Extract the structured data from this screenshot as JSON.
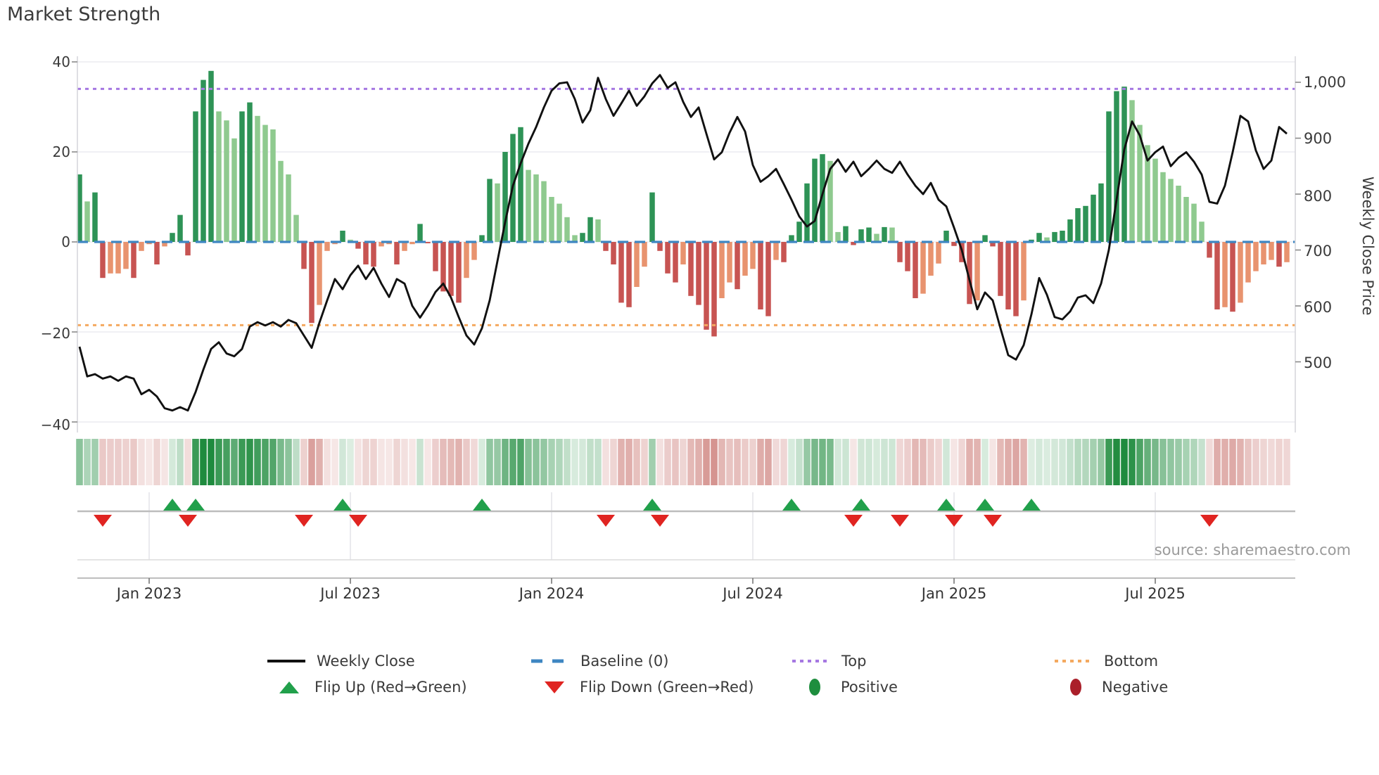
{
  "title": "Market Strength",
  "source_note": "source: sharemaestro.com",
  "colors": {
    "bar_positive_strong": "#2e9356",
    "bar_positive_weak": "#8fca8f",
    "bar_negative_strong": "#c75452",
    "bar_negative_weak": "#e8936f",
    "price_line": "#111111",
    "baseline": "#3e86c2",
    "top_line": "#a678e2",
    "bottom_line": "#f4a960",
    "flip_up": "#21a04b",
    "flip_down": "#e02421",
    "positive_dot": "#1e8e3e",
    "negative_dot": "#aa1f2a",
    "heat_positive": "#1f8b3e",
    "heat_negative": "#c1605a",
    "grid": "#ececf0",
    "spine": "#d7d7dc"
  },
  "axes": {
    "left": {
      "ticks": [
        {
          "label": "40",
          "v": 40
        },
        {
          "label": "20",
          "v": 20
        },
        {
          "label": "0",
          "v": 0
        },
        {
          "label": "−20",
          "v": -20
        },
        {
          "label": "−40",
          "v": -40
        }
      ]
    },
    "right": {
      "title": "Weekly Close Price",
      "ticks": [
        {
          "label": "1,000",
          "p": 1000
        },
        {
          "label": "900",
          "p": 900
        },
        {
          "label": "800",
          "p": 800
        },
        {
          "label": "700",
          "p": 700
        },
        {
          "label": "600",
          "p": 600
        },
        {
          "label": "500",
          "p": 500
        }
      ]
    },
    "x": {
      "ticks": [
        {
          "label": "Jan 2023",
          "week": 9
        },
        {
          "label": "Jul 2023",
          "week": 35
        },
        {
          "label": "Jan 2024",
          "week": 61
        },
        {
          "label": "Jul 2024",
          "week": 87
        },
        {
          "label": "Jan 2025",
          "week": 113
        },
        {
          "label": "Jul 2025",
          "week": 139
        }
      ]
    }
  },
  "chart_data": {
    "type": "bar",
    "subtype": "weekly market-strength bars + weekly close price line + heatmap strip + flip markers",
    "x_unit": "week",
    "num_weeks": 157,
    "left_ylim": [
      -40,
      40
    ],
    "right_ylim": [
      480,
      1040
    ],
    "baseline": 0,
    "top_threshold": 34,
    "bottom_threshold": -18.5,
    "strength_bars": [
      15,
      9,
      11,
      -8,
      -7,
      -7,
      -6,
      -8,
      -2,
      -0.5,
      -5,
      -1,
      2,
      6,
      -3,
      29,
      36,
      38,
      29,
      27,
      23,
      29,
      31,
      28,
      26,
      25,
      18,
      15,
      6,
      -6,
      -18,
      -14,
      -2,
      -0.5,
      2.5,
      0.5,
      -1.5,
      -5,
      -5.5,
      -1,
      -0.5,
      -5,
      -2,
      -0.5,
      4,
      -0.3,
      -6.5,
      -11,
      -12,
      -13.5,
      -8,
      -4,
      1.5,
      14,
      13,
      20,
      24,
      25.5,
      16,
      15,
      13.5,
      10,
      8.5,
      5.5,
      1.5,
      2,
      5.5,
      5,
      -2,
      -5,
      -13.5,
      -14.5,
      -10,
      -5.5,
      11,
      -2,
      -7,
      -9,
      -5,
      -12,
      -14,
      -19.5,
      -21,
      -12.5,
      -9,
      -10.5,
      -7.5,
      -6,
      -15,
      -16.5,
      -4,
      -4.5,
      1.5,
      4.5,
      13,
      18.5,
      19.5,
      18,
      2.2,
      3.5,
      -0.7,
      2.8,
      3.2,
      1.8,
      3.3,
      3.2,
      -4.5,
      -6.5,
      -12.5,
      -11.5,
      -7.5,
      -4.8,
      2.5,
      -0.9,
      -4.5,
      -13.8,
      -13,
      1.5,
      -1,
      -12,
      -15,
      -16.5,
      -13,
      0.5,
      2,
      1,
      2.2,
      2.5,
      5,
      7.5,
      8,
      10.5,
      13,
      29,
      33.5,
      34.5,
      31.5,
      26,
      21.5,
      18.5,
      15.5,
      14,
      12.5,
      10,
      8.5,
      4.5,
      -3.5,
      -15,
      -14.5,
      -15.5,
      -13.5,
      -9,
      -6.5,
      -5,
      -4,
      -5.5,
      -4.5
    ],
    "weekly_close": [
      527,
      474,
      478,
      470,
      474,
      466,
      474,
      470,
      442,
      450,
      438,
      417,
      413,
      419,
      413,
      446,
      486,
      523,
      535,
      515,
      510,
      523,
      563,
      571,
      565,
      571,
      563,
      575,
      569,
      547,
      525,
      570,
      610,
      648,
      630,
      655,
      672,
      648,
      668,
      640,
      616,
      648,
      640,
      600,
      579,
      600,
      625,
      640,
      615,
      580,
      547,
      531,
      560,
      610,
      680,
      750,
      815,
      855,
      890,
      920,
      955,
      985,
      998,
      1000,
      970,
      928,
      950,
      1008,
      970,
      940,
      962,
      985,
      958,
      975,
      998,
      1013,
      990,
      1000,
      965,
      938,
      955,
      908,
      862,
      875,
      910,
      938,
      912,
      852,
      822,
      832,
      845,
      818,
      790,
      760,
      742,
      752,
      800,
      845,
      862,
      840,
      858,
      832,
      845,
      860,
      845,
      838,
      858,
      835,
      815,
      800,
      820,
      790,
      778,
      740,
      700,
      646,
      594,
      624,
      610,
      560,
      512,
      504,
      530,
      585,
      650,
      620,
      580,
      576,
      590,
      615,
      619,
      605,
      640,
      700,
      790,
      880,
      930,
      905,
      860,
      875,
      885,
      850,
      865,
      875,
      858,
      835,
      786,
      783,
      815,
      875,
      940,
      930,
      878,
      845,
      860,
      920,
      908
    ],
    "flip_up_weeks": [
      12,
      15,
      34,
      52,
      74,
      92,
      101,
      112,
      117,
      123
    ],
    "flip_down_weeks": [
      3,
      14,
      29,
      36,
      68,
      75,
      100,
      106,
      113,
      118,
      146
    ]
  },
  "legend": {
    "items": [
      {
        "label": "Weekly Close",
        "swatch": "line"
      },
      {
        "label": "Baseline (0)",
        "swatch": "blue-dashes"
      },
      {
        "label": "Top",
        "swatch": "purple-dots"
      },
      {
        "label": "Bottom",
        "swatch": "orange-dots"
      },
      {
        "label": "Flip Up (Red→Green)",
        "swatch": "green-up-triangle"
      },
      {
        "label": "Flip Down (Green→Red)",
        "swatch": "red-down-triangle"
      },
      {
        "label": "Positive",
        "swatch": "green-dot"
      },
      {
        "label": "Negative",
        "swatch": "red-dot"
      }
    ]
  }
}
